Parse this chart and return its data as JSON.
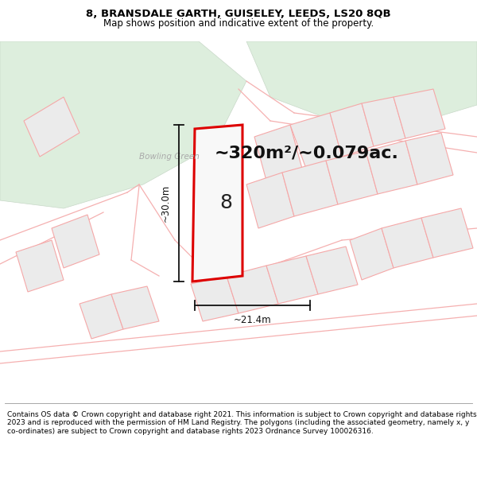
{
  "title_line1": "8, BRANSDALE GARTH, GUISELEY, LEEDS, LS20 8QB",
  "title_line2": "Map shows position and indicative extent of the property.",
  "area_text": "~320m²/~0.079ac.",
  "label_number": "8",
  "dim_vertical": "~30.0m",
  "dim_horizontal": "~21.4m",
  "bowling_green_label": "Bowling Green",
  "footer_text": "Contains OS data © Crown copyright and database right 2021. This information is subject to Crown copyright and database rights 2023 and is reproduced with the permission of HM Land Registry. The polygons (including the associated geometry, namely x, y co-ordinates) are subject to Crown copyright and database rights 2023 Ordnance Survey 100026316.",
  "map_bg": "#f5f5f2",
  "green_area_color": "#ddeedd",
  "green_area_stroke": "#c8d8c8",
  "plot_outline_color": "#dd0000",
  "plot_fill": "#f8f8f8",
  "neighbor_fill": "#ebebeb",
  "neighbor_stroke": "#f5a8a8",
  "road_color": "#f5b0b0",
  "title_bg": "#ffffff",
  "footer_bg": "#ffffff",
  "dim_color": "#111111",
  "area_text_size": 16,
  "title_fontsize": 9.5,
  "subtitle_fontsize": 8.5,
  "label_fontsize": 18,
  "bowling_fontsize": 7.5,
  "dim_fontsize": 8.5,
  "footer_fontsize": 6.5
}
